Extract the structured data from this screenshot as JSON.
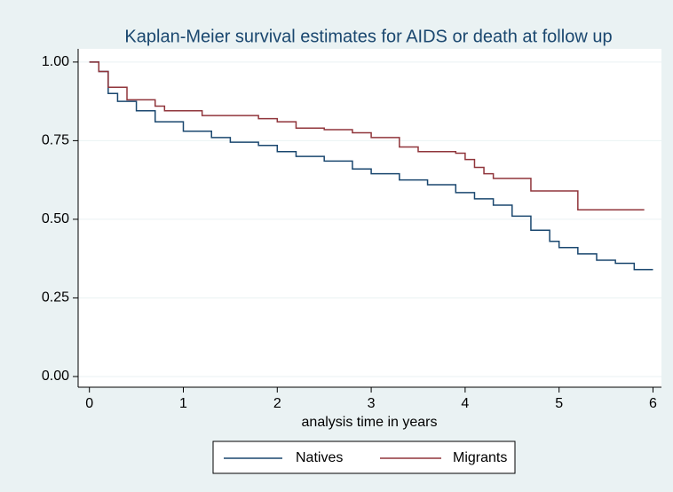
{
  "chart_data": {
    "type": "step",
    "title": "Kaplan-Meier survival estimates for AIDS or death at follow up",
    "x_label": "analysis time in years",
    "xlim": [
      -0.12,
      6.09
    ],
    "ylim": [
      -0.034,
      1.042
    ],
    "xticks": [
      0,
      1,
      2,
      3,
      4,
      5,
      6
    ],
    "yticks": [
      {
        "value": 0,
        "label": "0.00"
      },
      {
        "value": 0.25,
        "label": "0.25"
      },
      {
        "value": 0.5,
        "label": "0.50"
      },
      {
        "value": 0.75,
        "label": "0.75"
      },
      {
        "value": 1,
        "label": "1.00"
      }
    ],
    "grid": true,
    "series": [
      {
        "name": "Natives",
        "color": "#1a476f",
        "x": [
          0,
          0.1,
          0.2,
          0.3,
          0.5,
          0.7,
          1.0,
          1.3,
          1.5,
          1.8,
          2.0,
          2.2,
          2.5,
          2.8,
          3.0,
          3.3,
          3.6,
          3.9,
          4.1,
          4.3,
          4.5,
          4.7,
          4.9,
          5.0,
          5.2,
          5.4,
          5.6,
          5.8,
          6.0
        ],
        "values": [
          1.0,
          0.97,
          0.9,
          0.875,
          0.845,
          0.81,
          0.78,
          0.76,
          0.745,
          0.735,
          0.715,
          0.7,
          0.685,
          0.66,
          0.645,
          0.625,
          0.61,
          0.585,
          0.565,
          0.545,
          0.51,
          0.465,
          0.43,
          0.41,
          0.39,
          0.37,
          0.36,
          0.34,
          0.34
        ]
      },
      {
        "name": "Migrants",
        "color": "#90353b",
        "x": [
          0,
          0.1,
          0.2,
          0.4,
          0.7,
          0.8,
          1.2,
          1.8,
          2.0,
          2.2,
          2.5,
          2.8,
          3.0,
          3.3,
          3.5,
          3.9,
          4.0,
          4.1,
          4.2,
          4.3,
          4.7,
          5.2,
          5.9
        ],
        "values": [
          1.0,
          0.97,
          0.92,
          0.88,
          0.86,
          0.845,
          0.83,
          0.82,
          0.81,
          0.79,
          0.785,
          0.775,
          0.76,
          0.73,
          0.715,
          0.71,
          0.69,
          0.665,
          0.645,
          0.63,
          0.59,
          0.53,
          0.528
        ]
      }
    ]
  }
}
